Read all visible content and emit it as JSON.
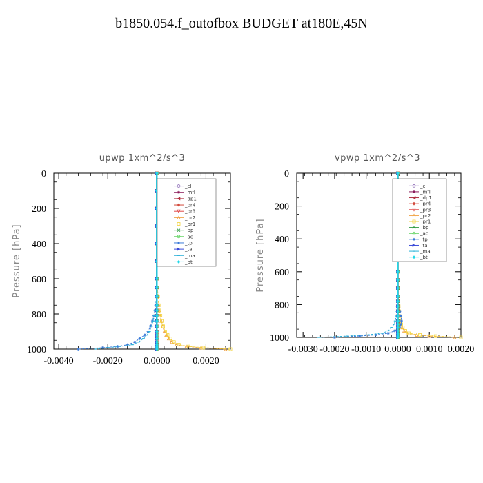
{
  "figure": {
    "title": "b1850.054.f_outofbox  BUDGET at180E,45N"
  },
  "legend_items": [
    {
      "label": "_cl",
      "color": "#8f6fb8",
      "marker": "circle"
    },
    {
      "label": "_mfl",
      "color": "#8b1a5a",
      "marker": "star"
    },
    {
      "label": "_dp1",
      "color": "#b03040",
      "marker": "triangle-left"
    },
    {
      "label": "_pr4",
      "color": "#d24a3c",
      "marker": "diamond"
    },
    {
      "label": "_pr3",
      "color": "#e04848",
      "marker": "triangle-down"
    },
    {
      "label": "_pr2",
      "color": "#f0a040",
      "marker": "triangle-up"
    },
    {
      "label": "_pr1",
      "color": "#f2d23a",
      "marker": "square"
    },
    {
      "label": "_bp",
      "color": "#2e9a40",
      "marker": "x"
    },
    {
      "label": "_ac",
      "color": "#5ad25a",
      "marker": "circle"
    },
    {
      "label": "_tp",
      "color": "#3a7ad8",
      "marker": "star"
    },
    {
      "label": "_ta",
      "color": "#3a4ad8",
      "marker": "triangle-right"
    },
    {
      "label": "_ma",
      "color": "#2ab0d8",
      "marker": "dash"
    },
    {
      "label": "_bt",
      "color": "#22d8e8",
      "marker": "diamond"
    }
  ],
  "chart_data": [
    {
      "type": "line",
      "title": "upwp  1xm^2/s^3",
      "ylabel": "Pressure [hPa]",
      "xlabel": "",
      "xlim": [
        -0.0042,
        0.003
      ],
      "ylim": [
        1000,
        0
      ],
      "y_inverted": true,
      "xticks": [
        -0.004,
        -0.002,
        0.0,
        0.002
      ],
      "xtick_labels": [
        "-0.0040",
        "-0.0020",
        "0.0000",
        "0.0020"
      ],
      "yticks": [
        0,
        200,
        400,
        600,
        800,
        1000
      ],
      "ytick_labels": [
        "0",
        "200",
        "400",
        "600",
        "800",
        "1000"
      ],
      "legend_position": "top-right",
      "y": [
        0,
        100,
        200,
        300,
        400,
        500,
        600,
        650,
        700,
        750,
        780,
        810,
        840,
        870,
        900,
        920,
        940,
        960,
        975,
        985,
        992,
        1000
      ],
      "series": [
        {
          "name": "_cl",
          "values": [
            0,
            0,
            0,
            0,
            0,
            0,
            0,
            0,
            0,
            0,
            0,
            0,
            0,
            0,
            0,
            0,
            0,
            0,
            0,
            0,
            0,
            0
          ]
        },
        {
          "name": "_mfl",
          "values": [
            0,
            0,
            0,
            0,
            0,
            0,
            0,
            0,
            0,
            0,
            0,
            0,
            0,
            0,
            0,
            0,
            0,
            0,
            0,
            0,
            0,
            0
          ]
        },
        {
          "name": "_dp1",
          "values": [
            0,
            0,
            0,
            0,
            0,
            0,
            0,
            0,
            0,
            0,
            0,
            0,
            0,
            0,
            0,
            0,
            0,
            0,
            0,
            0,
            0,
            0
          ]
        },
        {
          "name": "_pr4",
          "values": [
            0,
            0,
            0,
            0,
            0,
            0,
            0,
            0,
            0,
            0,
            0,
            0,
            0,
            0,
            0,
            0,
            0,
            0,
            0,
            0,
            0,
            0
          ]
        },
        {
          "name": "_pr3",
          "values": [
            0,
            0,
            0,
            0,
            0,
            0,
            0,
            0,
            0,
            0,
            0,
            0,
            0,
            0,
            0,
            0,
            0,
            0,
            0,
            0,
            0,
            0
          ]
        },
        {
          "name": "_pr2",
          "values": [
            0,
            0,
            0,
            0,
            0,
            0,
            0,
            2e-05,
            5e-05,
            8e-05,
            0.0001,
            0.00014,
            0.00018,
            0.00024,
            0.0003,
            0.00038,
            0.00048,
            0.0006,
            0.0008,
            0.0012,
            0.0018,
            0.0028
          ]
        },
        {
          "name": "_pr1",
          "values": [
            0,
            0,
            0,
            0,
            0,
            0,
            0,
            2e-05,
            5e-05,
            8e-05,
            0.0001,
            0.00015,
            0.0002,
            0.00026,
            0.00034,
            0.00044,
            0.00056,
            0.0007,
            0.0009,
            0.0013,
            0.0019,
            0.003
          ]
        },
        {
          "name": "_bp",
          "values": [
            0,
            0,
            0,
            0,
            0,
            0,
            0,
            0,
            0,
            0,
            0,
            0,
            0,
            0,
            0,
            0,
            0,
            0,
            0,
            0,
            0,
            0
          ]
        },
        {
          "name": "_ac",
          "values": [
            0,
            0,
            0,
            0,
            0,
            0,
            0,
            0,
            0,
            0,
            0,
            0,
            0,
            0,
            0,
            0,
            0,
            0,
            0,
            0,
            0,
            0
          ]
        },
        {
          "name": "_tp",
          "values": [
            0,
            0,
            0,
            0,
            0,
            0,
            0,
            0,
            -2e-05,
            -5e-05,
            -8e-05,
            -0.00012,
            -0.00018,
            -0.00026,
            -0.00036,
            -0.0005,
            -0.0007,
            -0.0009,
            -0.0012,
            -0.0016,
            -0.0022,
            -0.0032
          ]
        },
        {
          "name": "_ta",
          "values": [
            0,
            0,
            0,
            0,
            0,
            0,
            0,
            0,
            0,
            0,
            0,
            0,
            0,
            0,
            0,
            0,
            0,
            0,
            0,
            0,
            0,
            0
          ]
        },
        {
          "name": "_ma",
          "values": [
            0,
            0,
            0,
            0,
            0,
            0,
            0,
            0,
            -2e-05,
            -4e-05,
            -7e-05,
            -0.0001,
            -0.00015,
            -0.00022,
            -0.0003,
            -0.0004,
            -0.00055,
            -0.00075,
            -0.001,
            -0.0015,
            -0.002,
            -0.0025
          ]
        },
        {
          "name": "_bt",
          "values": [
            0,
            0,
            0,
            0,
            0,
            0,
            0,
            0,
            0,
            0,
            0,
            0,
            0,
            0,
            0,
            0,
            0,
            0,
            0,
            0,
            0,
            0
          ]
        }
      ]
    },
    {
      "type": "line",
      "title": "vpwp  1xm^2/s^3",
      "ylabel": "Pressure [hPa]",
      "xlabel": "",
      "xlim": [
        -0.0032,
        0.002
      ],
      "ylim": [
        1000,
        0
      ],
      "y_inverted": true,
      "xticks": [
        -0.003,
        -0.002,
        -0.001,
        0.0,
        0.001,
        0.002
      ],
      "xtick_labels": [
        "-0.0030",
        "-0.0020",
        "-0.0010",
        "0.0000",
        "0.0010",
        "0.0020"
      ],
      "yticks": [
        0,
        200,
        400,
        600,
        800,
        1000
      ],
      "ytick_labels": [
        "0",
        "200",
        "400",
        "600",
        "800",
        "1000"
      ],
      "legend_position": "top-right",
      "y": [
        0,
        100,
        200,
        300,
        400,
        500,
        600,
        650,
        700,
        750,
        780,
        810,
        840,
        870,
        900,
        920,
        940,
        960,
        975,
        985,
        992,
        1000
      ],
      "series": [
        {
          "name": "_cl",
          "values": [
            0,
            0,
            0,
            0,
            0,
            0,
            0,
            0,
            0,
            0,
            0,
            0,
            0,
            0,
            0,
            0,
            0,
            0,
            0,
            0,
            0,
            0
          ]
        },
        {
          "name": "_mfl",
          "values": [
            0,
            0,
            0,
            0,
            0,
            0,
            0,
            0,
            0,
            0,
            0,
            0,
            0,
            0,
            0,
            0,
            0,
            0,
            0,
            0,
            0,
            0
          ]
        },
        {
          "name": "_dp1",
          "values": [
            0,
            0,
            0,
            0,
            0,
            0,
            0,
            0,
            0,
            0,
            0,
            0,
            0,
            0,
            0,
            0,
            0,
            0,
            0,
            0,
            0,
            0
          ]
        },
        {
          "name": "_pr4",
          "values": [
            0,
            0,
            0,
            0,
            0,
            0,
            0,
            0,
            0,
            0,
            0,
            0,
            0,
            0,
            0,
            0,
            0,
            0,
            0,
            0,
            0,
            0
          ]
        },
        {
          "name": "_pr3",
          "values": [
            0,
            0,
            0,
            0,
            0,
            0,
            0,
            0,
            0,
            0,
            0,
            0,
            0,
            0,
            0,
            0,
            0,
            0,
            0,
            0,
            0,
            0
          ]
        },
        {
          "name": "_pr2",
          "values": [
            0,
            0,
            0,
            0,
            0,
            0,
            0,
            0,
            0,
            1e-05,
            2e-05,
            3e-05,
            4e-05,
            6e-05,
            8e-05,
            0.0001,
            0.00014,
            0.0002,
            0.0003,
            0.0006,
            0.001,
            0.0018
          ]
        },
        {
          "name": "_pr1",
          "values": [
            0,
            0,
            0,
            0,
            0,
            0,
            0,
            0,
            0,
            1e-05,
            2e-05,
            3e-05,
            4e-05,
            6e-05,
            8e-05,
            0.00011,
            0.00016,
            0.00024,
            0.00035,
            0.0007,
            0.0012,
            0.002
          ]
        },
        {
          "name": "_bp",
          "values": [
            0,
            0,
            0,
            0,
            0,
            0,
            0,
            0,
            0,
            0,
            0,
            0,
            0,
            0,
            0,
            0,
            0,
            0,
            0,
            0,
            0,
            0
          ]
        },
        {
          "name": "_ac",
          "values": [
            0,
            0,
            0,
            0,
            0,
            0,
            0,
            0,
            0,
            0,
            0,
            0,
            0,
            0,
            0,
            0,
            0,
            0,
            0,
            0,
            0,
            0
          ]
        },
        {
          "name": "_tp",
          "values": [
            0,
            0,
            0,
            0,
            0,
            0,
            0,
            0,
            0,
            1e-05,
            2e-05,
            4e-05,
            7e-05,
            0.0001,
            0.00012,
            0.0001,
            6e-05,
            -0.0001,
            -0.0003,
            -0.0007,
            -0.0012,
            -0.002
          ]
        },
        {
          "name": "_ta",
          "values": [
            0,
            0,
            0,
            0,
            0,
            0,
            0,
            0,
            0,
            0,
            0,
            0,
            0,
            0,
            0,
            0,
            0,
            0,
            0,
            0,
            0,
            0
          ]
        },
        {
          "name": "_ma",
          "values": [
            0,
            0,
            0,
            0,
            0,
            0,
            0,
            0,
            0,
            0,
            -1e-05,
            -2e-05,
            -3e-05,
            -5e-05,
            -8e-05,
            -0.00012,
            -0.0002,
            -0.0003,
            -0.0005,
            -0.001,
            -0.0016,
            -0.0025
          ]
        },
        {
          "name": "_bt",
          "values": [
            0,
            0,
            0,
            0,
            0,
            0,
            0,
            0,
            0,
            0,
            0,
            0,
            0,
            0,
            0,
            0,
            0,
            0,
            0,
            0,
            0,
            0
          ]
        }
      ]
    }
  ]
}
